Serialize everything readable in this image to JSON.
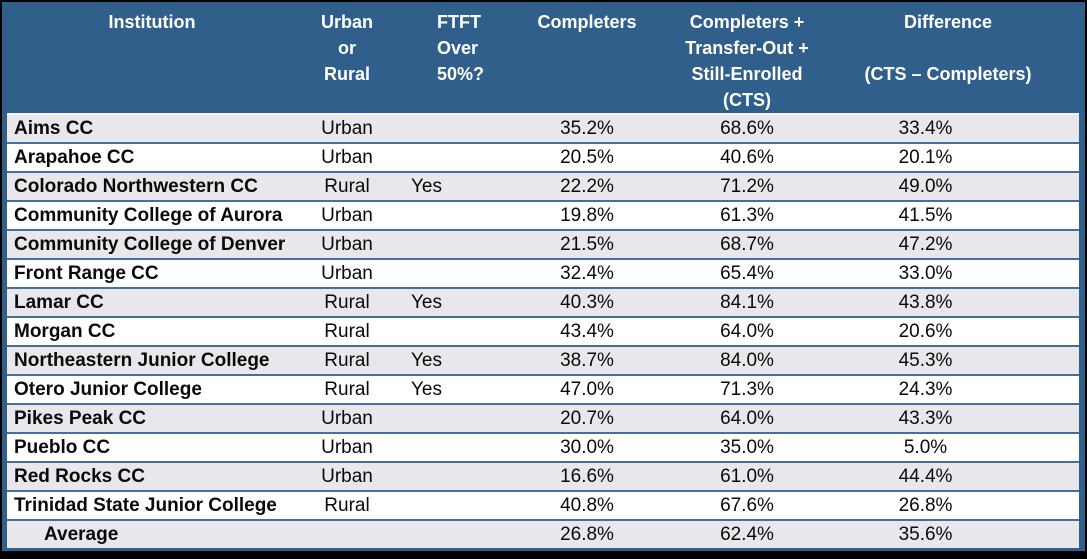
{
  "colors": {
    "header_background": "#315F8C",
    "row_separator": "#41719C",
    "row_alternate_background": "#E8E8EC",
    "header_text": "#FFFFFF",
    "body_text": "#0A0A0A",
    "canvas_background": "#000000"
  },
  "table": {
    "columns": [
      {
        "key": "institution",
        "label": "Institution"
      },
      {
        "key": "urban_rural",
        "label": "Urban\nor\nRural"
      },
      {
        "key": "ftft_over_50",
        "label": "FTFT\nOver\n50%?"
      },
      {
        "key": "completers",
        "label": "Completers"
      },
      {
        "key": "cts",
        "label": "Completers +\nTransfer-Out +\nStill-Enrolled\n(CTS)"
      },
      {
        "key": "difference",
        "label": "Difference\n\n(CTS – Completers)"
      }
    ],
    "rows": [
      {
        "institution": "Aims CC",
        "urban_rural": "Urban",
        "ftft_over_50": "",
        "completers": "35.2%",
        "cts": "68.6%",
        "difference": "33.4%"
      },
      {
        "institution": "Arapahoe CC",
        "urban_rural": "Urban",
        "ftft_over_50": "",
        "completers": "20.5%",
        "cts": "40.6%",
        "difference": "20.1%"
      },
      {
        "institution": "Colorado Northwestern CC",
        "urban_rural": "Rural",
        "ftft_over_50": "Yes",
        "completers": "22.2%",
        "cts": "71.2%",
        "difference": "49.0%"
      },
      {
        "institution": "Community College of Aurora",
        "urban_rural": "Urban",
        "ftft_over_50": "",
        "completers": "19.8%",
        "cts": "61.3%",
        "difference": "41.5%"
      },
      {
        "institution": "Community College of Denver",
        "urban_rural": "Urban",
        "ftft_over_50": "",
        "completers": "21.5%",
        "cts": "68.7%",
        "difference": "47.2%"
      },
      {
        "institution": "Front Range CC",
        "urban_rural": "Urban",
        "ftft_over_50": "",
        "completers": "32.4%",
        "cts": "65.4%",
        "difference": "33.0%"
      },
      {
        "institution": "Lamar CC",
        "urban_rural": "Rural",
        "ftft_over_50": "Yes",
        "completers": "40.3%",
        "cts": "84.1%",
        "difference": "43.8%"
      },
      {
        "institution": "Morgan CC",
        "urban_rural": "Rural",
        "ftft_over_50": "",
        "completers": "43.4%",
        "cts": "64.0%",
        "difference": "20.6%"
      },
      {
        "institution": "Northeastern Junior College",
        "urban_rural": "Rural",
        "ftft_over_50": "Yes",
        "completers": "38.7%",
        "cts": "84.0%",
        "difference": "45.3%"
      },
      {
        "institution": "Otero Junior College",
        "urban_rural": "Rural",
        "ftft_over_50": "Yes",
        "completers": "47.0%",
        "cts": "71.3%",
        "difference": "24.3%"
      },
      {
        "institution": "Pikes Peak CC",
        "urban_rural": "Urban",
        "ftft_over_50": "",
        "completers": "20.7%",
        "cts": "64.0%",
        "difference": "43.3%"
      },
      {
        "institution": "Pueblo CC",
        "urban_rural": "Urban",
        "ftft_over_50": "",
        "completers": "30.0%",
        "cts": "35.0%",
        "difference": "5.0%"
      },
      {
        "institution": "Red Rocks CC",
        "urban_rural": "Urban",
        "ftft_over_50": "",
        "completers": "16.6%",
        "cts": "61.0%",
        "difference": "44.4%"
      },
      {
        "institution": "Trinidad State Junior College",
        "urban_rural": "Rural",
        "ftft_over_50": "",
        "completers": "40.8%",
        "cts": "67.6%",
        "difference": "26.8%"
      }
    ],
    "average_row": {
      "institution": "Average",
      "urban_rural": "",
      "ftft_over_50": "",
      "completers": "26.8%",
      "cts": "62.4%",
      "difference": "35.6%"
    }
  }
}
